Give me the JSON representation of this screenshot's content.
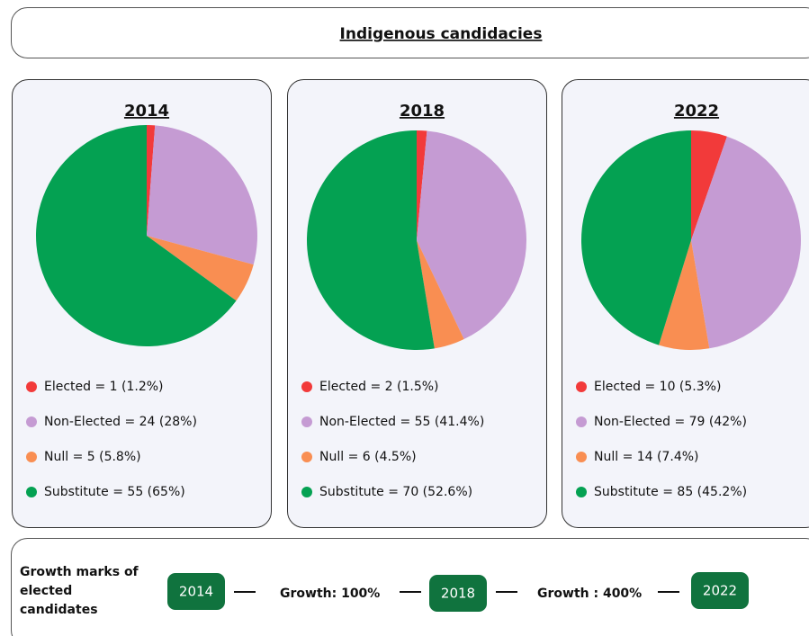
{
  "header": {
    "title": "Indigenous candidacies"
  },
  "chart_data": [
    {
      "type": "pie",
      "title": "2014",
      "values": [
        1.2,
        28,
        5.8,
        65
      ],
      "counts": [
        1,
        24,
        5,
        55
      ],
      "value_labels": [
        "Elected = 1 (1.2%)",
        "Non-Elected = 24 (28%)",
        "Null = 5 (5.8%)",
        "Substitute = 55 (65%)"
      ],
      "colors": [
        "#f23a3a",
        "#c59bd3",
        "#f98e52",
        "#04a152"
      ]
    },
    {
      "type": "pie",
      "title": "2018",
      "values": [
        1.5,
        41.4,
        4.5,
        52.6
      ],
      "counts": [
        2,
        55,
        6,
        70
      ],
      "value_labels": [
        "Elected = 2 (1.5%)",
        "Non-Elected = 55 (41.4%)",
        "Null = 6 (4.5%)",
        "Substitute = 70 (52.6%)"
      ],
      "colors": [
        "#f23a3a",
        "#c59bd3",
        "#f98e52",
        "#04a152"
      ]
    },
    {
      "type": "pie",
      "title": "2022",
      "values": [
        5.3,
        42,
        7.4,
        45.2
      ],
      "counts": [
        10,
        79,
        14,
        85
      ],
      "value_labels": [
        "Elected = 10 (5.3%)",
        "Non-Elected = 79 (42%)",
        "Null = 14 (7.4%)",
        "Substitute = 85 (45.2%)"
      ],
      "colors": [
        "#f23a3a",
        "#c59bd3",
        "#f98e52",
        "#04a152"
      ]
    }
  ],
  "growth": {
    "title_lines": [
      "Growth marks of",
      "elected",
      "candidates"
    ],
    "years": [
      "2014",
      "2018",
      "2022"
    ],
    "steps": [
      "Growth: 100%",
      "Growth : 400%"
    ]
  }
}
